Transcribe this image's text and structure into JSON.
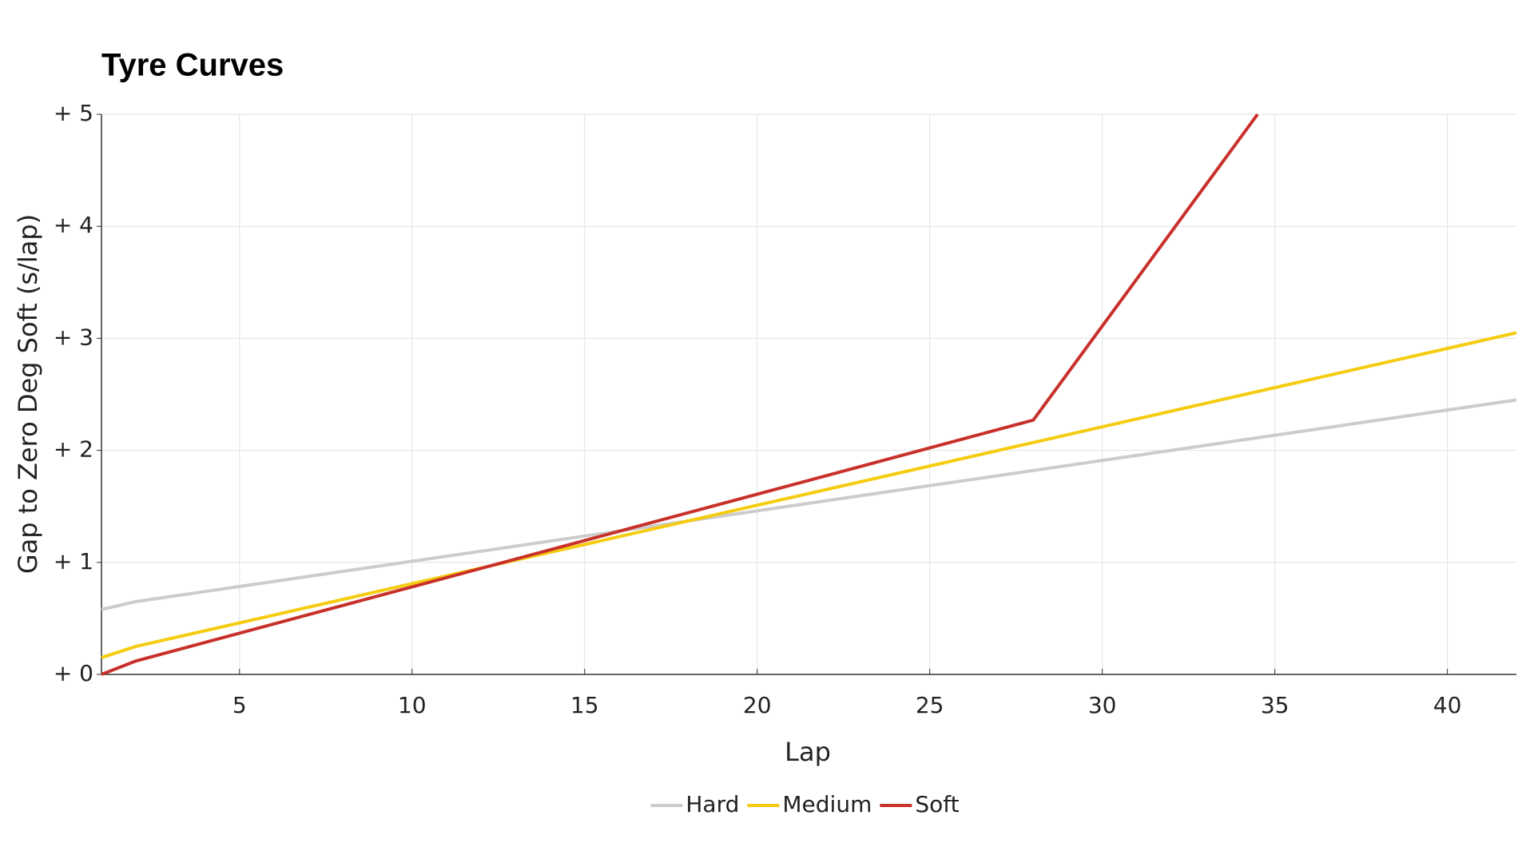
{
  "chart_data": {
    "type": "line",
    "title": "Tyre Curves",
    "x_label": "Lap",
    "y_label": "Gap to Zero Deg Soft (s/lap)",
    "xlim": [
      1,
      42
    ],
    "ylim": [
      0,
      5
    ],
    "xticks": [
      5,
      10,
      15,
      20,
      25,
      30,
      35,
      40
    ],
    "yticks": [
      {
        "value": 0,
        "label": "+ 0"
      },
      {
        "value": 1,
        "label": "+ 1"
      },
      {
        "value": 2,
        "label": "+ 2"
      },
      {
        "value": 3,
        "label": "+ 3"
      },
      {
        "value": 4,
        "label": "+ 4"
      },
      {
        "value": 5,
        "label": "+ 5"
      }
    ],
    "grid": true,
    "legend": "bottom",
    "series": [
      {
        "name": "Hard",
        "color": "#cccccc",
        "x": [
          1,
          2,
          42
        ],
        "values": [
          0.58,
          0.65,
          2.45
        ]
      },
      {
        "name": "Medium",
        "color": "#f5cc0f",
        "x": [
          1,
          2,
          42
        ],
        "values": [
          0.15,
          0.25,
          3.05
        ]
      },
      {
        "name": "Soft",
        "color": "#c8302a",
        "x": [
          1,
          2,
          28,
          34.5
        ],
        "values": [
          0,
          0.12,
          2.27,
          5
        ]
      }
    ]
  }
}
